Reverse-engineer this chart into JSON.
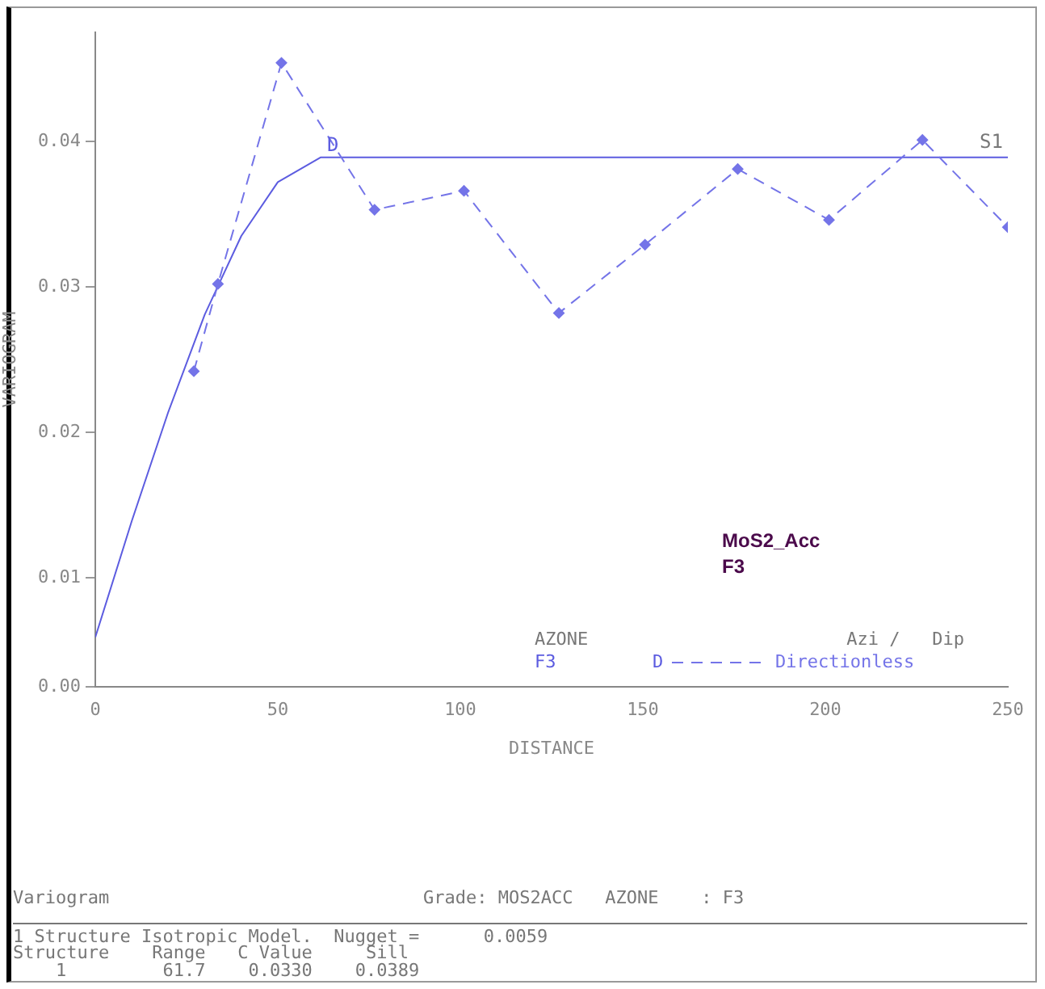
{
  "chart_data": {
    "type": "line",
    "xlabel": "DISTANCE",
    "ylabel": "VARIOGRAM",
    "xlim": [
      0,
      250
    ],
    "xticks": [
      0,
      50,
      100,
      150,
      200,
      250
    ],
    "ylim": [
      0.0025,
      0.0475
    ],
    "yticks": [
      {
        "value": 0.0025,
        "label": "0.00"
      },
      0.01,
      0.02,
      0.03,
      0.04
    ],
    "grid": false,
    "legend": "bottom right",
    "series": [
      {
        "name": "Directionless",
        "color": "#7474e8",
        "line_style": "dashed",
        "marker": "diamond",
        "x": [
          27,
          33.6,
          51,
          76.5,
          101,
          127,
          150.6,
          176,
          201,
          226.6,
          250
        ],
        "values": [
          0.0242,
          0.0302,
          0.0454,
          0.0353,
          0.0366,
          0.0282,
          0.0329,
          0.0381,
          0.0346,
          0.0401,
          0.0341
        ]
      },
      {
        "color": "#5c5ce0",
        "line_style": "solid",
        "marker": "none",
        "x": [
          0,
          10,
          20,
          30,
          40,
          50,
          61.7,
          250
        ],
        "values": [
          0.0059,
          0.0139,
          0.0214,
          0.0281,
          0.0335,
          0.0372,
          0.0389,
          0.0389
        ]
      }
    ],
    "annotations": [
      "MoS2_Acc",
      "F3",
      "AZONE",
      "F3",
      "Azi /   Dip",
      "D",
      {
        "text": "D",
        "x": 61.7,
        "y": 0.0389
      },
      {
        "text": "S1",
        "x": 250,
        "y": 0.0389
      },
      "Variogram",
      "Grade: MOS2ACC   AZONE    : F3",
      "1 Structure Isotropic Model.  Nugget =      0.0059",
      "Structure    Range   C Value     Sill",
      "    1         61.7    0.0330    0.0389"
    ]
  }
}
